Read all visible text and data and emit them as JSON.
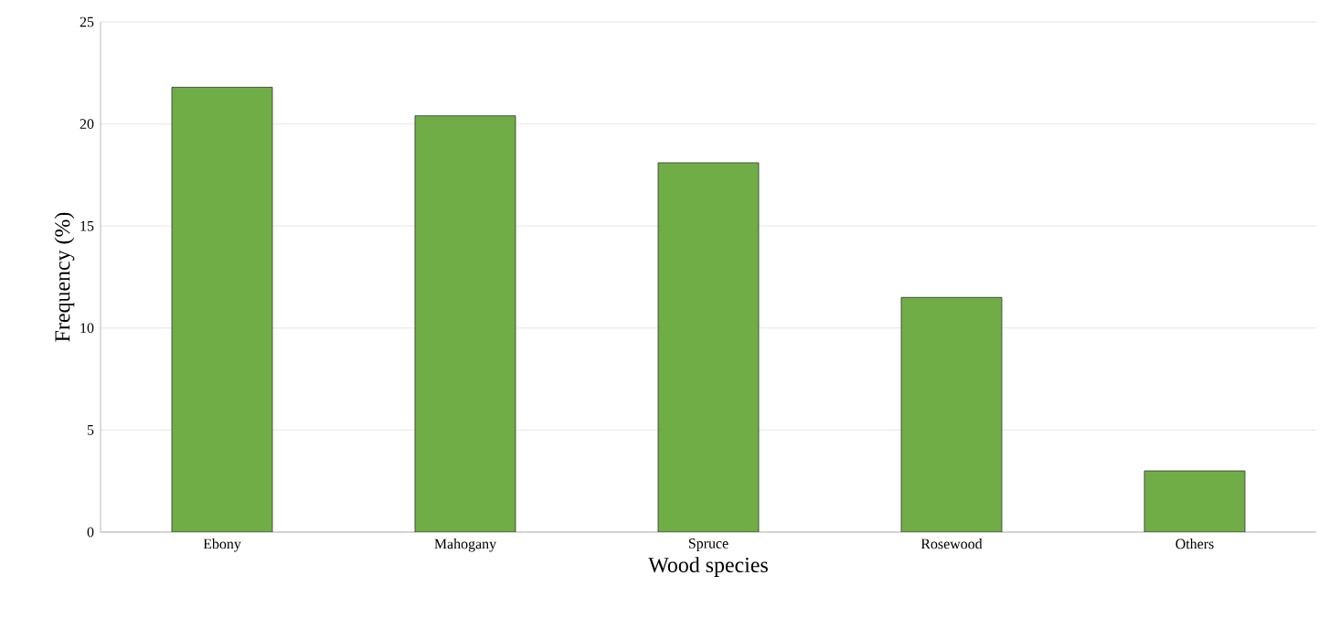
{
  "chart_data": {
    "type": "bar",
    "xlabel": "Wood species",
    "ylabel": "Frequency (%)",
    "categories": [
      "Ebony",
      "Mahogany",
      "Spruce",
      "Rosewood",
      "Others"
    ],
    "values": [
      21.8,
      20.4,
      18.1,
      11.5,
      3.0
    ],
    "color": "#70ad47",
    "ylim": [
      0,
      25
    ],
    "yticks": [
      0,
      5,
      10,
      15,
      20,
      25
    ],
    "grid": "y"
  }
}
